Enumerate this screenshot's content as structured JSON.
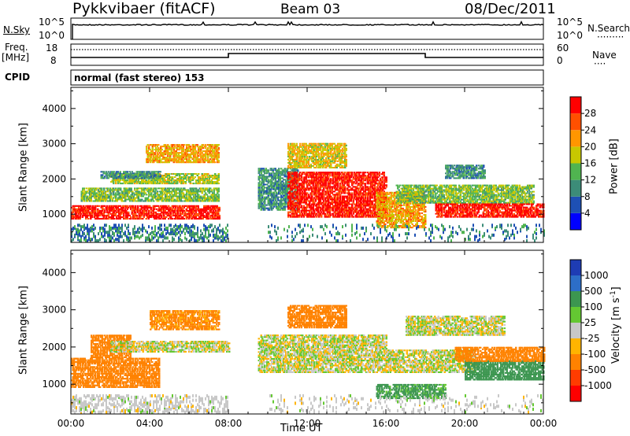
{
  "header": {
    "station": "Pykkvibaer (fitACF)",
    "beam": "Beam 03",
    "date": "08/Dec/2011"
  },
  "top_panel": {
    "left_label": "N.Sky",
    "left_ticks": [
      "10^5",
      "10^0"
    ],
    "right_ticks": [
      "10^5",
      "10^0"
    ],
    "right_label": "N.Search",
    "right_dots": "·········"
  },
  "freq_panel": {
    "left_label_line1": "Freq.",
    "left_label_line2": "[MHz]",
    "left_ticks": [
      "18",
      "8"
    ],
    "right_ticks": [
      "60",
      "0"
    ],
    "right_label": "Nave",
    "right_dots": "····"
  },
  "cpid_panel": {
    "label": "CPID",
    "text": "normal (fast stereo) 153"
  },
  "colors": {
    "background": "#ffffff",
    "axis": "#000000"
  },
  "chart_data": [
    {
      "type": "heatmap",
      "title": "",
      "xlabel": "",
      "ylabel": "Slant Range [km]",
      "x_ticks": [
        "00:00",
        "04:00",
        "08:00",
        "12:00",
        "16:00",
        "20:00",
        "00:00"
      ],
      "y_ticks": [
        "1000",
        "2000",
        "3000",
        "4000"
      ],
      "xlim": [
        0,
        24
      ],
      "ylim": [
        200,
        4600
      ],
      "colorbar": {
        "label": "Power [dB]",
        "ticks": [
          "4",
          "8",
          "12",
          "16",
          "20",
          "24",
          "28"
        ],
        "range": [
          0,
          30
        ],
        "colors": [
          "#0000ff",
          "#1e50b4",
          "#3c8c78",
          "#50b450",
          "#c8c800",
          "#ff9600",
          "#ff5000",
          "#ff0000"
        ]
      },
      "regions": [
        {
          "t0": 0.0,
          "t1": 7.5,
          "r0": 850,
          "r1": 1250,
          "value": 28
        },
        {
          "t0": 0.5,
          "t1": 7.5,
          "r0": 1350,
          "r1": 1750,
          "value": 14
        },
        {
          "t0": 2.0,
          "t1": 7.5,
          "r0": 1850,
          "r1": 2150,
          "value": 16
        },
        {
          "t0": 3.8,
          "t1": 7.5,
          "r0": 2450,
          "r1": 2950,
          "value": 20
        },
        {
          "t0": 1.5,
          "t1": 4.5,
          "r0": 2000,
          "r1": 2200,
          "value": 10
        },
        {
          "t0": 9.5,
          "t1": 11.5,
          "r0": 1100,
          "r1": 2300,
          "value": 10
        },
        {
          "t0": 11.0,
          "t1": 16.0,
          "r0": 900,
          "r1": 2200,
          "value": 28
        },
        {
          "t0": 11.0,
          "t1": 14.0,
          "r0": 2300,
          "r1": 3000,
          "value": 18
        },
        {
          "t0": 15.5,
          "t1": 18.0,
          "r0": 600,
          "r1": 1600,
          "value": 20
        },
        {
          "t0": 16.5,
          "t1": 23.5,
          "r0": 1300,
          "r1": 1800,
          "value": 14
        },
        {
          "t0": 18.5,
          "t1": 24.0,
          "r0": 900,
          "r1": 1300,
          "value": 28
        },
        {
          "t0": 19.0,
          "t1": 21.0,
          "r0": 2000,
          "r1": 2400,
          "value": 10
        }
      ]
    },
    {
      "type": "heatmap",
      "title": "",
      "xlabel": "Time UT",
      "ylabel": "Slant Range [km]",
      "x_ticks": [
        "00:00",
        "04:00",
        "08:00",
        "12:00",
        "16:00",
        "20:00",
        "00:00"
      ],
      "y_ticks": [
        "1000",
        "2000",
        "3000",
        "4000"
      ],
      "xlim": [
        0,
        24
      ],
      "ylim": [
        200,
        4600
      ],
      "colorbar": {
        "label": "Velocity [m s",
        "label_sup": "-1",
        "label_end": "]",
        "ticks": [
          "1000",
          "500",
          "100",
          "25",
          "-25",
          "-100",
          "-500",
          "-1000"
        ],
        "colors": [
          "#1e3cb4",
          "#2d6ec8",
          "#3c9650",
          "#64c832",
          "#c8c8c8",
          "#ffb400",
          "#ff8200",
          "#ff3c00",
          "#ff0000"
        ]
      },
      "regions": [
        {
          "t0": 0.0,
          "t1": 4.5,
          "r0": 900,
          "r1": 1700,
          "value": -300
        },
        {
          "t0": 1.0,
          "t1": 3.0,
          "r0": 1700,
          "r1": 2300,
          "value": -200
        },
        {
          "t0": 4.0,
          "t1": 7.5,
          "r0": 2450,
          "r1": 2950,
          "value": -150
        },
        {
          "t0": 2.0,
          "t1": 8.0,
          "r0": 1850,
          "r1": 2150,
          "value": 0
        },
        {
          "t0": 9.5,
          "t1": 16.0,
          "r0": 1300,
          "r1": 2300,
          "value": 0
        },
        {
          "t0": 11.0,
          "t1": 14.0,
          "r0": 2500,
          "r1": 3100,
          "value": -200
        },
        {
          "t0": 15.5,
          "t1": 19.0,
          "r0": 600,
          "r1": 1000,
          "value": 150
        },
        {
          "t0": 16.0,
          "t1": 20.5,
          "r0": 1300,
          "r1": 1900,
          "value": 0
        },
        {
          "t0": 20.0,
          "t1": 24.0,
          "r0": 1100,
          "r1": 1600,
          "value": 400
        },
        {
          "t0": 19.5,
          "t1": 24.0,
          "r0": 1600,
          "r1": 2000,
          "value": -200
        },
        {
          "t0": 17.0,
          "t1": 22.0,
          "r0": 2300,
          "r1": 2800,
          "value": 0
        }
      ]
    }
  ]
}
